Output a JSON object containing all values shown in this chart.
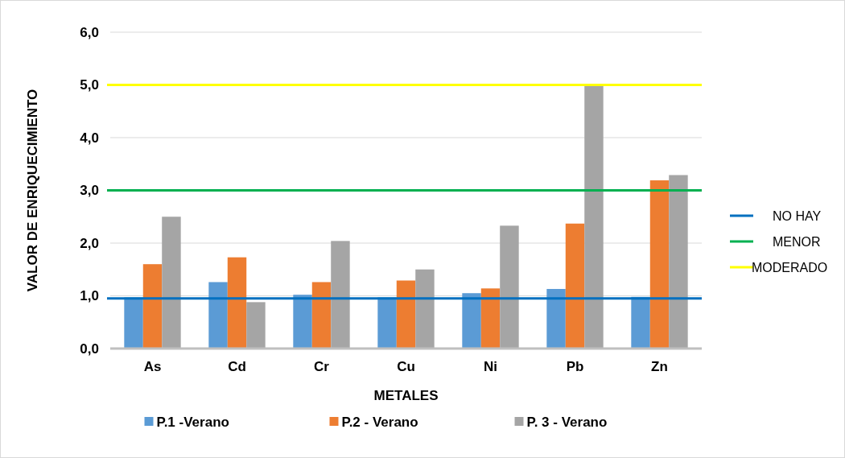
{
  "chart_data": {
    "type": "bar",
    "xlabel": "METALES",
    "ylabel": "VALOR DE ENRIQUECIMIENTO",
    "categories": [
      "As",
      "Cd",
      "Cr",
      "Cu",
      "Ni",
      "Pb",
      "Zn"
    ],
    "series": [
      {
        "name": "P.1 -Verano",
        "color": "#5b9bd5",
        "values": [
          0.97,
          1.26,
          1.02,
          0.97,
          1.05,
          1.13,
          0.98
        ]
      },
      {
        "name": "P.2 - Verano",
        "color": "#ed7d31",
        "values": [
          1.6,
          1.73,
          1.26,
          1.29,
          1.14,
          2.37,
          3.19
        ]
      },
      {
        "name": "P. 3 - Verano",
        "color": "#a5a5a5",
        "values": [
          2.5,
          0.88,
          2.04,
          1.5,
          2.33,
          4.98,
          3.29
        ]
      }
    ],
    "ylim": [
      0,
      6
    ],
    "yticks": [
      {
        "value": 0,
        "label": "0,0"
      },
      {
        "value": 1,
        "label": "1,0"
      },
      {
        "value": 2,
        "label": "2,0"
      },
      {
        "value": 3,
        "label": "3,0"
      },
      {
        "value": 4,
        "label": "4,0"
      },
      {
        "value": 5,
        "label": "5,0"
      },
      {
        "value": 6,
        "label": "6,0"
      }
    ],
    "ref_lines": [
      {
        "axis": "y",
        "value": 0.95,
        "label": "NO HAY",
        "color": "#0070c0"
      },
      {
        "axis": "y",
        "value": 3.0,
        "label": "MENOR",
        "color": "#00b050"
      },
      {
        "axis": "y",
        "value": 5.0,
        "label": "MODERADO",
        "color": "#ffff00"
      }
    ],
    "grid": "y",
    "legend": "bottom"
  }
}
